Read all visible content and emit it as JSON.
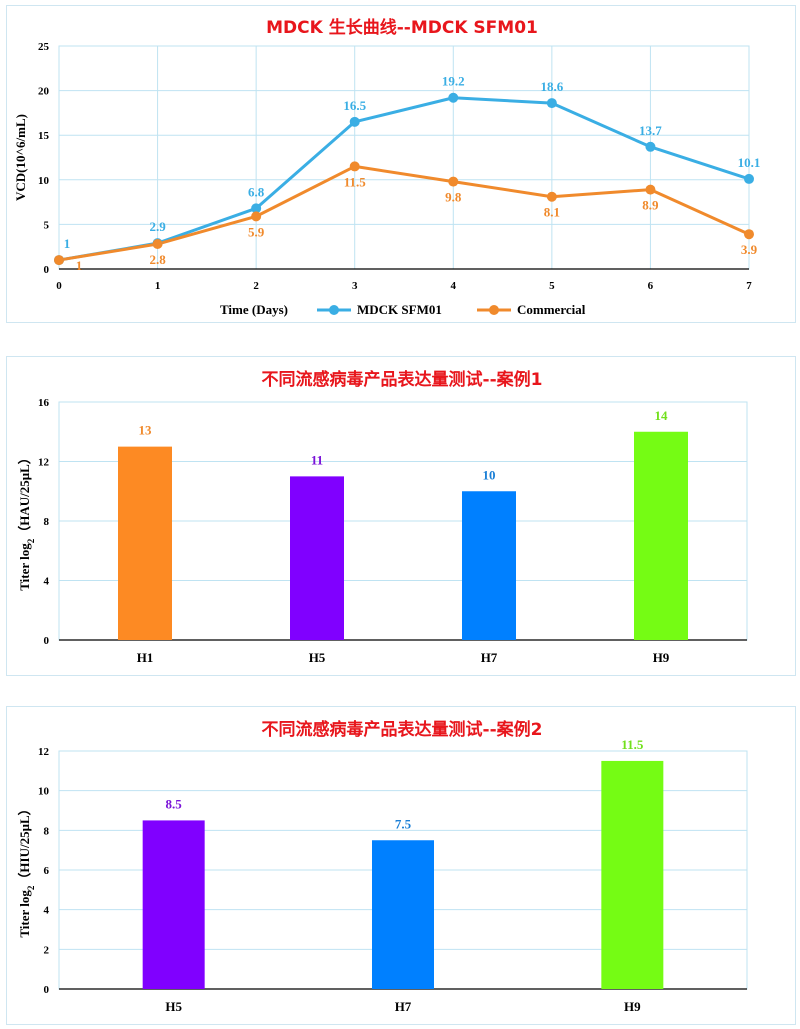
{
  "chart_data": [
    {
      "type": "line",
      "title": "MDCK 生长曲线--MDCK SFM01",
      "xlabel": "Time (Days)",
      "ylabel": "VCD(10^6/mL)",
      "x": [
        0,
        1,
        2,
        3,
        4,
        5,
        6,
        7
      ],
      "xlim": [
        0,
        7
      ],
      "ylim": [
        0,
        25
      ],
      "yticks": [
        0,
        5,
        10,
        15,
        20,
        25
      ],
      "grid": true,
      "legend": "bottom",
      "series": [
        {
          "name": "MDCK SFM01",
          "color": "#3aaee4",
          "values": [
            1,
            2.9,
            6.8,
            16.5,
            19.2,
            18.6,
            13.7,
            10.1
          ],
          "labels": [
            "1",
            "2.9",
            "6.8",
            "16.5",
            "19.2",
            "18.6",
            "13.7",
            "10.1"
          ]
        },
        {
          "name": "Commercial",
          "color": "#f08a2c",
          "values": [
            1,
            2.8,
            5.9,
            11.5,
            9.8,
            8.1,
            8.9,
            3.9
          ],
          "labels": [
            "1",
            "2.8",
            "5.9",
            "11.5",
            "9.8",
            "8.1",
            "8.9",
            "3.9"
          ]
        }
      ]
    },
    {
      "type": "bar",
      "title": "不同流感病毒产品表达量测试--案例1",
      "xlabel": "",
      "ylabel": "Titer log2（HAU/25μL）",
      "categories": [
        "H1",
        "H5",
        "H7",
        "H9"
      ],
      "values": [
        13,
        11,
        10,
        14
      ],
      "labels": [
        "13",
        "11",
        "10",
        "14"
      ],
      "colors": [
        "#fd8a23",
        "#8000ff",
        "#0080ff",
        "#75fc14"
      ],
      "label_colors": [
        "#f08a2c",
        "#7a12d8",
        "#1a7fd6",
        "#72e01c"
      ],
      "ylim": [
        0,
        16
      ],
      "yticks": [
        0,
        4,
        8,
        12,
        16
      ],
      "grid": true
    },
    {
      "type": "bar",
      "title": "不同流感病毒产品表达量测试--案例2",
      "xlabel": "",
      "ylabel": "Titer log2（HIU/25μL）",
      "categories": [
        "H5",
        "H7",
        "H9"
      ],
      "values": [
        8.5,
        7.5,
        11.5
      ],
      "labels": [
        "8.5",
        "7.5",
        "11.5"
      ],
      "colors": [
        "#8000ff",
        "#0080ff",
        "#75fc14"
      ],
      "label_colors": [
        "#7a12d8",
        "#1a7fd6",
        "#72e01c"
      ],
      "ylim": [
        0,
        12
      ],
      "yticks": [
        0,
        2,
        4,
        6,
        8,
        10,
        12
      ],
      "grid": true
    }
  ]
}
